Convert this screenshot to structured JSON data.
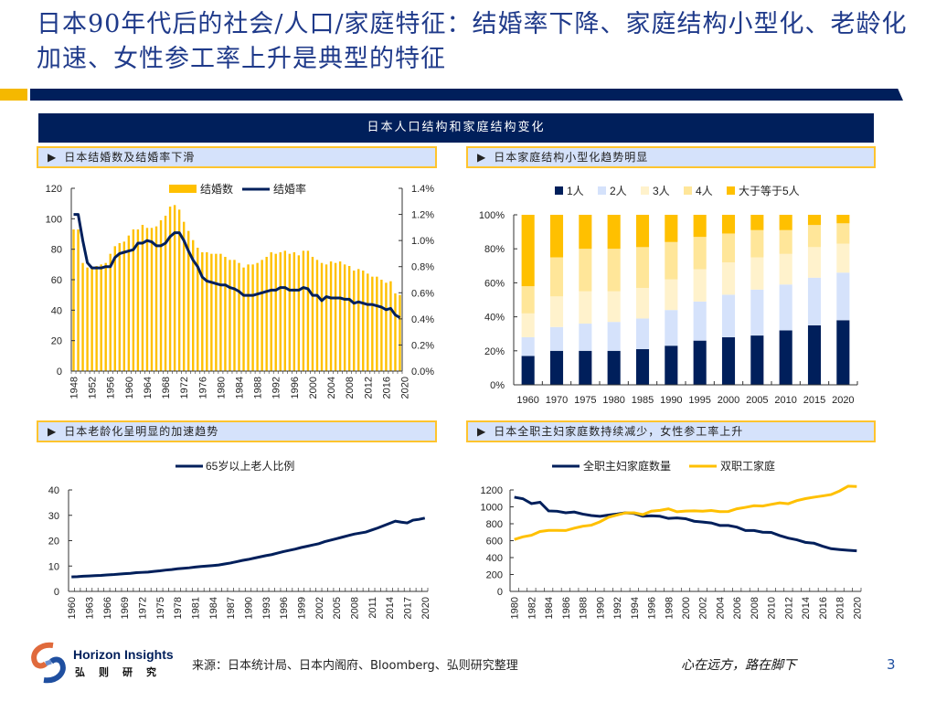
{
  "page": {
    "title": "日本90年代后的社会/人口/家庭特征：结婚率下降、家庭结构小型化、老龄化加速、女性参工率上升是典型的特征",
    "banner": "日本人口结构和家庭结构变化",
    "page_number": "3",
    "source": "来源：日本统计局、日本内阁府、Bloomberg、弘则研究整理",
    "motto": "心在远方，路在脚下",
    "brand_en": "Horizon Insights",
    "brand_cn": "弘则研究",
    "arrow_icon": "▶",
    "colors": {
      "navy": "#001f5b",
      "gold": "#ffc000",
      "light_blue": "#d5e2fb",
      "cream": "#fff2cc",
      "light_gold": "#ffe699"
    }
  },
  "panels": {
    "p1": {
      "subtitle": "日本结婚数及结婚率下滑"
    },
    "p2": {
      "subtitle": "日本家庭结构小型化趋势明显"
    },
    "p3": {
      "subtitle": "日本老龄化呈明显的加速趋势"
    },
    "p4": {
      "subtitle": "日本全职主妇家庭数持续减少，女性参工率上升"
    }
  },
  "chart_data": [
    {
      "id": "marriage",
      "type": "bar+line",
      "title": "日本结婚数及结婚率下滑",
      "legend": [
        "结婚数",
        "结婚率"
      ],
      "x_start": 1948,
      "x_ticks": [
        "1948",
        "1952",
        "1956",
        "1960",
        "1964",
        "1968",
        "1972",
        "1976",
        "1980",
        "1984",
        "1988",
        "1992",
        "1996",
        "2000",
        "2004",
        "2008",
        "2012",
        "2016",
        "2020"
      ],
      "y_left": {
        "range": [
          0,
          120
        ],
        "ticks": [
          "0",
          "20",
          "40",
          "60",
          "80",
          "100",
          "120"
        ]
      },
      "y_right": {
        "range": [
          0,
          1.4
        ],
        "ticks": [
          "0.0%",
          "0.2%",
          "0.4%",
          "0.6%",
          "0.8%",
          "1.0%",
          "1.2%",
          "1.4%"
        ]
      },
      "series": [
        {
          "name": "结婚数",
          "type": "bar",
          "axis": "left",
          "values": [
            93,
            93,
            71,
            68,
            68,
            69,
            70,
            71,
            77,
            82,
            84,
            85,
            89,
            93,
            93,
            96,
            94,
            94,
            95,
            99,
            102,
            108,
            109,
            106,
            98,
            92,
            86,
            81,
            78,
            78,
            77,
            77,
            77,
            75,
            73,
            73,
            71,
            68,
            70,
            70,
            71,
            73,
            75,
            78,
            77,
            78,
            79,
            77,
            78,
            76,
            79,
            79,
            75,
            73,
            71,
            70,
            72,
            71,
            72,
            70,
            69,
            66,
            67,
            66,
            64,
            62,
            62,
            60,
            58,
            59,
            51,
            50
          ]
        },
        {
          "name": "结婚率",
          "type": "line",
          "axis": "right",
          "values": [
            1.2,
            1.2,
            1.0,
            0.83,
            0.79,
            0.79,
            0.79,
            0.8,
            0.8,
            0.87,
            0.9,
            0.91,
            0.92,
            0.93,
            0.98,
            0.98,
            1.0,
            0.99,
            0.96,
            0.96,
            0.98,
            1.03,
            1.06,
            1.06,
            1.0,
            0.92,
            0.85,
            0.8,
            0.72,
            0.69,
            0.68,
            0.67,
            0.66,
            0.66,
            0.64,
            0.63,
            0.61,
            0.58,
            0.58,
            0.58,
            0.59,
            0.6,
            0.61,
            0.62,
            0.62,
            0.64,
            0.64,
            0.62,
            0.62,
            0.62,
            0.64,
            0.63,
            0.58,
            0.58,
            0.54,
            0.57,
            0.56,
            0.56,
            0.56,
            0.55,
            0.55,
            0.52,
            0.53,
            0.52,
            0.51,
            0.51,
            0.5,
            0.49,
            0.47,
            0.48,
            0.43,
            0.41
          ]
        }
      ]
    },
    {
      "id": "household",
      "type": "bar",
      "stacked": true,
      "title": "日本家庭结构小型化趋势明显",
      "categories": [
        "1960",
        "1970",
        "1975",
        "1980",
        "1985",
        "1990",
        "1995",
        "2000",
        "2005",
        "2010",
        "2015",
        "2020"
      ],
      "y": {
        "range": [
          0,
          100
        ],
        "ticks": [
          "0%",
          "20%",
          "40%",
          "60%",
          "80%",
          "100%"
        ]
      },
      "series": [
        {
          "name": "1人",
          "color": "#001f5b",
          "values": [
            17,
            20,
            20,
            20,
            21,
            23,
            26,
            28,
            29,
            32,
            35,
            38
          ]
        },
        {
          "name": "2人",
          "color": "#d5e2fb",
          "values": [
            11,
            14,
            16,
            17,
            18,
            21,
            23,
            25,
            27,
            27,
            28,
            28
          ]
        },
        {
          "name": "3人",
          "color": "#fff2cc",
          "values": [
            14,
            18,
            19,
            18,
            18,
            18,
            19,
            19,
            19,
            18,
            18,
            17
          ]
        },
        {
          "name": "4人",
          "color": "#ffe699",
          "values": [
            16,
            23,
            25,
            25,
            24,
            22,
            19,
            17,
            16,
            14,
            13,
            12
          ]
        },
        {
          "name": "大于等于5人",
          "color": "#ffc000",
          "values": [
            42,
            25,
            20,
            20,
            19,
            16,
            13,
            11,
            9,
            9,
            6,
            5
          ]
        }
      ]
    },
    {
      "id": "aging",
      "type": "line",
      "title": "日本老龄化呈明显的加速趋势",
      "legend": [
        "65岁以上老人比例"
      ],
      "x_start": 1960,
      "x_ticks": [
        "1960",
        "1963",
        "1966",
        "1969",
        "1972",
        "1975",
        "1978",
        "1981",
        "1984",
        "1987",
        "1990",
        "1993",
        "1996",
        "1999",
        "2002",
        "2005",
        "2008",
        "2011",
        "2014",
        "2017",
        "2020"
      ],
      "y": {
        "range": [
          0,
          40
        ],
        "ticks": [
          "0",
          "10",
          "20",
          "30",
          "40"
        ]
      },
      "series": [
        {
          "name": "65岁以上老人比例",
          "color": "#001f5b",
          "values": [
            5.7,
            5.8,
            6.0,
            6.1,
            6.2,
            6.3,
            6.5,
            6.6,
            6.8,
            7.0,
            7.1,
            7.4,
            7.5,
            7.6,
            7.9,
            8.1,
            8.4,
            8.6,
            8.9,
            9.1,
            9.3,
            9.6,
            9.8,
            10.0,
            10.2,
            10.4,
            10.8,
            11.2,
            11.7,
            12.2,
            12.6,
            13.1,
            13.6,
            14.1,
            14.5,
            15.1,
            15.7,
            16.2,
            16.7,
            17.3,
            17.8,
            18.3,
            18.8,
            19.6,
            20.2,
            20.8,
            21.4,
            22.0,
            22.6,
            23.0,
            23.4,
            24.2,
            25.0,
            25.9,
            26.8,
            27.7,
            27.3,
            27.0,
            28.1,
            28.4,
            28.9
          ]
        }
      ]
    },
    {
      "id": "workforce",
      "type": "line",
      "title": "日本全职主妇家庭数持续减少，女性参工率上升",
      "legend": [
        "全职主妇家庭数量",
        "双职工家庭"
      ],
      "x_start": 1980,
      "x_ticks": [
        "1980",
        "1982",
        "1984",
        "1986",
        "1988",
        "1990",
        "1992",
        "1994",
        "1996",
        "1998",
        "2000",
        "2002",
        "2004",
        "2006",
        "2008",
        "2010",
        "2012",
        "2014",
        "2016",
        "2018",
        "2020"
      ],
      "y": {
        "range": [
          0,
          1200
        ],
        "ticks": [
          "0",
          "200",
          "400",
          "600",
          "800",
          "1000",
          "1200"
        ]
      },
      "series": [
        {
          "name": "全职主妇家庭数量",
          "color": "#001f5b",
          "values": [
            1114,
            1096,
            1038,
            1054,
            952,
            948,
            930,
            939,
            914,
            897,
            888,
            903,
            915,
            930,
            921,
            889,
            895,
            889,
            863,
            869,
            860,
            830,
            820,
            810,
            780,
            780,
            760,
            720,
            720,
            700,
            697,
            660,
            630,
            610,
            580,
            570,
            535,
            505,
            495,
            487,
            480
          ]
        },
        {
          "name": "双职工家庭",
          "color": "#ffc000",
          "values": [
            614,
            645,
            664,
            708,
            721,
            722,
            720,
            748,
            771,
            783,
            823,
            877,
            903,
            929,
            930,
            908,
            949,
            958,
            977,
            942,
            950,
            953,
            949,
            957,
            943,
            945,
            977,
            994,
            1013,
            1010,
            1029,
            1047,
            1037,
            1074,
            1097,
            1114,
            1129,
            1145,
            1188,
            1245,
            1240
          ]
        }
      ]
    }
  ]
}
